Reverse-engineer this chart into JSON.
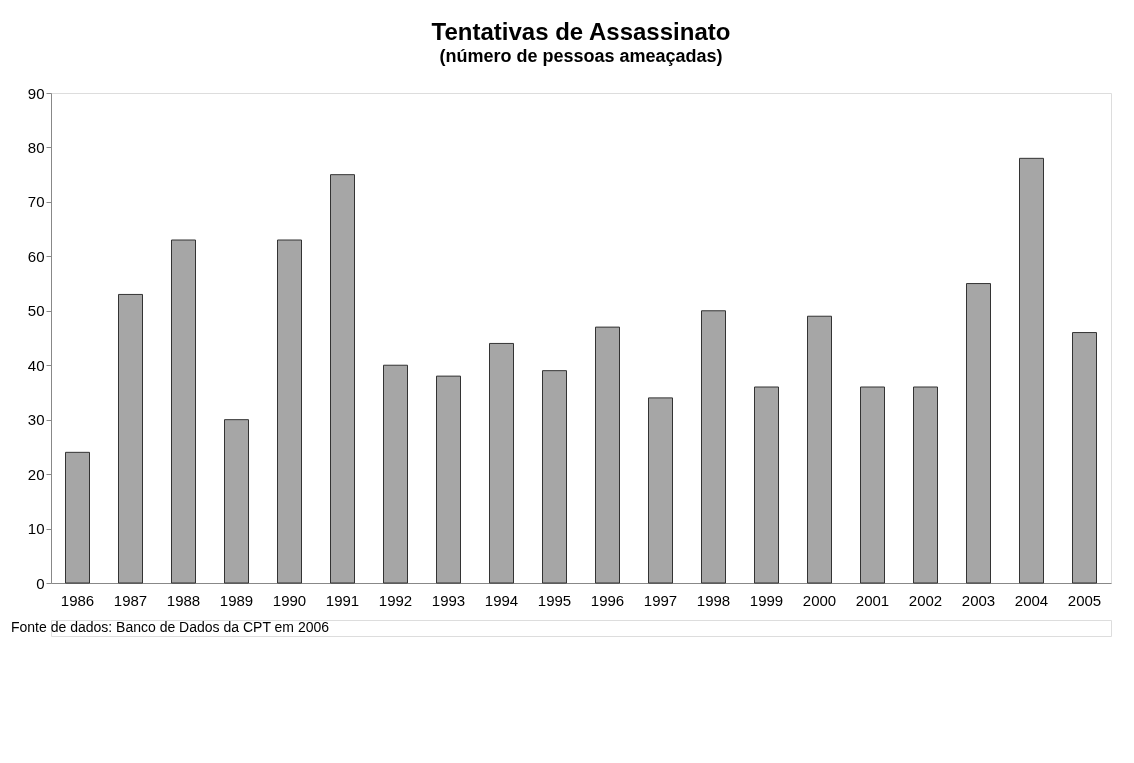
{
  "chart_data": {
    "type": "bar",
    "title": "Tentativas de Assassinato",
    "subtitle": "(número de pessoas ameaçadas)",
    "categories": [
      "1986",
      "1987",
      "1988",
      "1989",
      "1990",
      "1991",
      "1992",
      "1993",
      "1994",
      "1995",
      "1996",
      "1997",
      "1998",
      "1999",
      "2000",
      "2001",
      "2002",
      "2003",
      "2004",
      "2005"
    ],
    "values": [
      24,
      53,
      63,
      30,
      63,
      75,
      40,
      38,
      44,
      39,
      47,
      34,
      50,
      36,
      49,
      36,
      36,
      55,
      78,
      46
    ],
    "color": "#a6a6a6",
    "ylim": [
      0,
      90
    ],
    "yticks": [
      0,
      10,
      20,
      30,
      40,
      50,
      60,
      70,
      80,
      90
    ],
    "grid": false,
    "annotations": [
      "Fonte de dados:  Banco de Dados da CPT em 2006"
    ]
  }
}
